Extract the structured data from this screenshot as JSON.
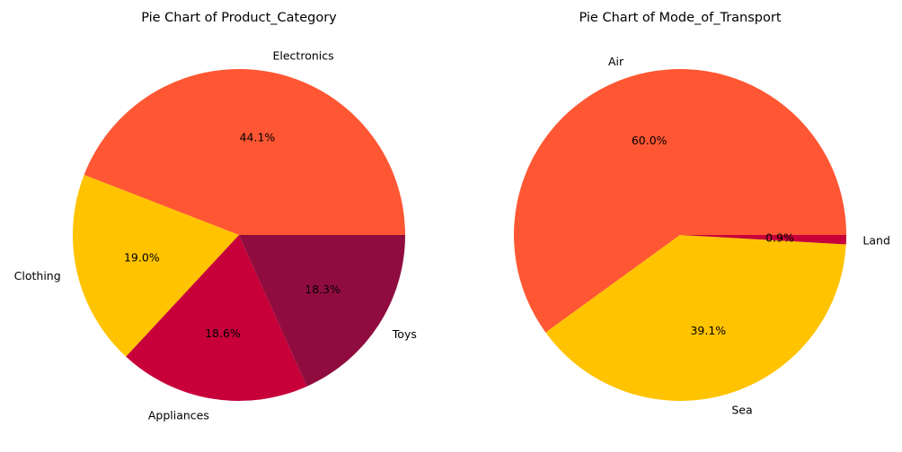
{
  "chart_data": [
    {
      "type": "pie",
      "title": "Pie Chart of Product_Category",
      "start_angle_deg": 0,
      "direction": "counterclockwise",
      "slices": [
        {
          "label": "Electronics",
          "value": 44.1,
          "pct_label": "44.1%",
          "color": "#FF5733"
        },
        {
          "label": "Clothing",
          "value": 19.0,
          "pct_label": "19.0%",
          "color": "#FFC300"
        },
        {
          "label": "Appliances",
          "value": 18.6,
          "pct_label": "18.6%",
          "color": "#C70039"
        },
        {
          "label": "Toys",
          "value": 18.3,
          "pct_label": "18.3%",
          "color": "#900C3F"
        }
      ]
    },
    {
      "type": "pie",
      "title": "Pie Chart of Mode_of_Transport",
      "start_angle_deg": 0,
      "direction": "counterclockwise",
      "slices": [
        {
          "label": "Air",
          "value": 60.0,
          "pct_label": "60.0%",
          "color": "#FF5733"
        },
        {
          "label": "Sea",
          "value": 39.1,
          "pct_label": "39.1%",
          "color": "#FFC300"
        },
        {
          "label": "Land",
          "value": 0.9,
          "pct_label": "0.9%",
          "color": "#C70039"
        }
      ]
    }
  ]
}
